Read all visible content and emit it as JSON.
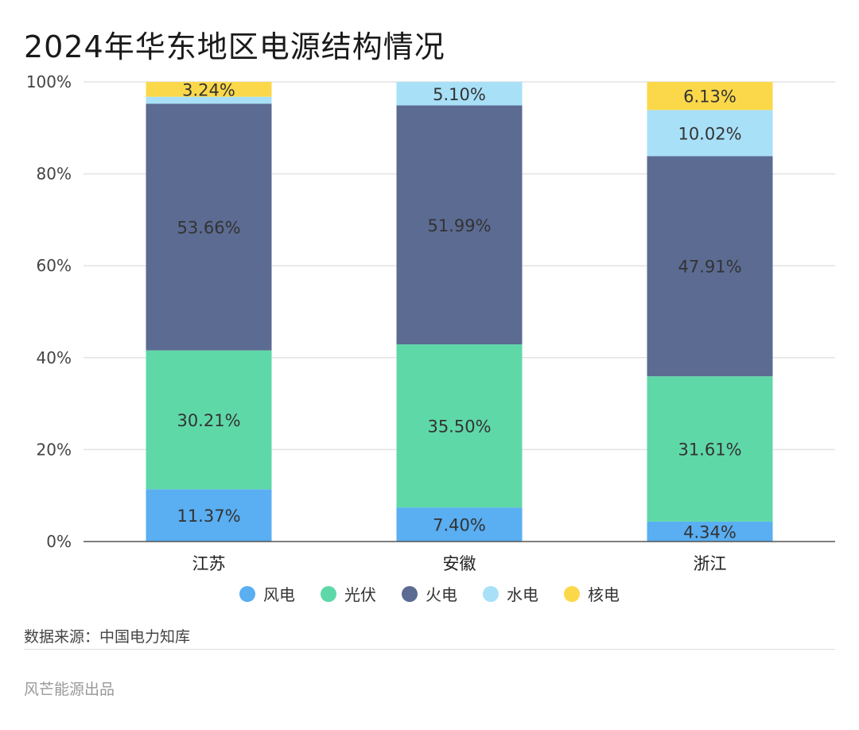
{
  "title": "2024年华东地区电源结构情况",
  "source": "数据来源：中国电力知库",
  "credit": "风芒能源出品",
  "chart_data": {
    "type": "bar",
    "stacked": true,
    "title": "2024年华东地区电源结构情况",
    "categories": [
      "江苏",
      "安徽",
      "浙江"
    ],
    "y_ticks": [
      "0%",
      "20%",
      "40%",
      "60%",
      "80%",
      "100%"
    ],
    "ylim": [
      0,
      100
    ],
    "grid": true,
    "legend_position": "bottom",
    "series": [
      {
        "name": "风电",
        "color": "#5aaef2",
        "values": [
          11.37,
          7.4,
          4.34
        ],
        "labels": [
          "11.37%",
          "7.40%",
          "4.34%"
        ]
      },
      {
        "name": "光伏",
        "color": "#5fd8a8",
        "values": [
          30.21,
          35.5,
          31.61
        ],
        "labels": [
          "30.21%",
          "35.50%",
          "31.61%"
        ]
      },
      {
        "name": "火电",
        "color": "#5b6b92",
        "values": [
          53.66,
          51.99,
          47.91
        ],
        "labels": [
          "53.66%",
          "51.99%",
          "47.91%"
        ]
      },
      {
        "name": "水电",
        "color": "#a8e0f8",
        "values": [
          1.52,
          5.1,
          10.02
        ],
        "labels": [
          "",
          "5.10%",
          "10.02%"
        ]
      },
      {
        "name": "核电",
        "color": "#fbd84a",
        "values": [
          3.24,
          0,
          6.13
        ],
        "labels": [
          "3.24%",
          "",
          "6.13%"
        ]
      }
    ]
  }
}
